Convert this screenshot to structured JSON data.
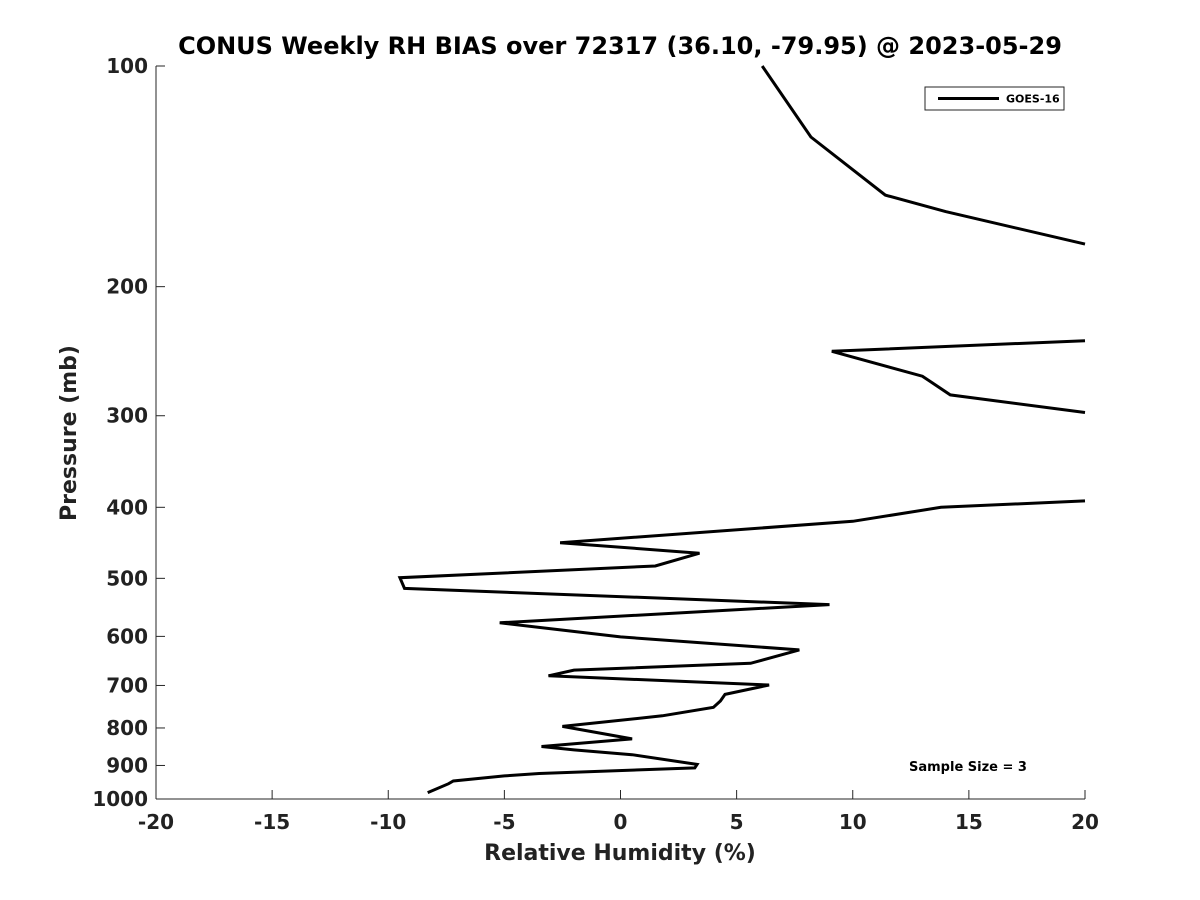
{
  "chart_data": {
    "type": "line",
    "title": "CONUS Weekly RH BIAS over 72317 (36.10, -79.95) @ 2023-05-29",
    "xlabel": "Relative Humidity (%)",
    "ylabel": "Pressure (mb)",
    "xlim": [
      -20,
      20
    ],
    "ylim": [
      100,
      1000
    ],
    "y_scale": "log",
    "y_reversed": true,
    "x_ticks": [
      -20,
      -15,
      -10,
      -5,
      0,
      5,
      10,
      15,
      20
    ],
    "x_tick_labels": [
      "-20",
      "-15",
      "-10",
      "-5",
      "0",
      "5",
      "10",
      "15",
      "20"
    ],
    "y_ticks": [
      100,
      200,
      300,
      400,
      500,
      600,
      700,
      800,
      900,
      1000
    ],
    "y_tick_labels": [
      "100",
      "200",
      "300",
      "400",
      "500",
      "600",
      "700",
      "800",
      "900",
      "1000"
    ],
    "grid": false,
    "legend_position": "top-right",
    "annotation": "Sample Size = 3",
    "series": [
      {
        "name": "GOES-16",
        "color": "#000000",
        "segments": [
          [
            [
              6.1,
              100
            ],
            [
              8.2,
              125
            ],
            [
              11.4,
              150
            ],
            [
              14,
              158
            ],
            [
              20,
              175
            ]
          ],
          [
            [
              20,
              237
            ],
            [
              9.1,
              245
            ],
            [
              13,
              265
            ],
            [
              14.2,
              281
            ],
            [
              20,
              297
            ]
          ],
          [
            [
              20,
              392
            ],
            [
              13.8,
              400
            ],
            [
              10,
              418
            ],
            [
              -2.6,
              447
            ],
            [
              3.4,
              462
            ],
            [
              1.5,
              481
            ],
            [
              -9.5,
              499
            ],
            [
              -9.3,
              516
            ],
            [
              9,
              543
            ],
            [
              -5.2,
              575
            ],
            [
              0,
              601
            ],
            [
              7.7,
              626
            ],
            [
              5.6,
              653
            ],
            [
              -2,
              667
            ],
            [
              -3.1,
              679
            ],
            [
              6.4,
              699
            ],
            [
              4.5,
              720
            ],
            [
              4.3,
              735
            ],
            [
              4,
              750
            ],
            [
              1.8,
              770
            ],
            [
              -2.5,
              796
            ],
            [
              0.5,
              828
            ],
            [
              -3.4,
              848
            ],
            [
              -2,
              857
            ],
            [
              0.5,
              870
            ],
            [
              3.3,
              897
            ],
            [
              3.2,
              907
            ],
            [
              -3.5,
              923
            ],
            [
              -5,
              930
            ],
            [
              -7.2,
              945
            ],
            [
              -7.4,
              953
            ],
            [
              -8.3,
              980
            ]
          ]
        ]
      }
    ]
  }
}
